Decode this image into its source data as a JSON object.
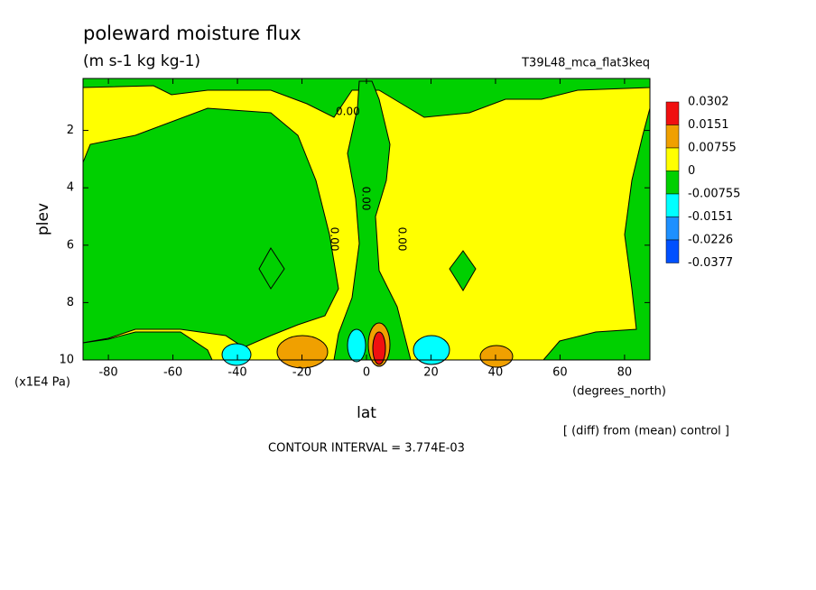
{
  "chart_data": {
    "type": "contour",
    "title": "poleward moisture flux",
    "subtitle": "(m s-1 kg kg-1)",
    "run_label": "T39L48_mca_flat3keq",
    "x_label": "lat",
    "x_units": "(degrees_north)",
    "y_label": "plev",
    "y_units": "(x1E4 Pa)",
    "note": "[ (diff) from (mean) control ]",
    "contour_interval": "CONTOUR INTERVAL = 3.774E-03",
    "contour_labels": [
      "0.00",
      "0.00",
      "0.00",
      "0.00"
    ],
    "xlim": [
      -87.86,
      87.86
    ],
    "xticks": [
      -80,
      -60,
      -40,
      -20,
      0,
      20,
      40,
      60,
      80
    ],
    "ylim": [
      10,
      0.19
    ],
    "yticks": [
      2,
      4,
      6,
      8,
      10
    ],
    "levels": [
      0.0302,
      0.0151,
      0.00755,
      0,
      -0.00755,
      -0.0151,
      -0.0226,
      -0.0377
    ],
    "level_colors": [
      "#f01010",
      "#f0a000",
      "#ffff00",
      "#00d000",
      "#00ffff",
      "#1e90ff",
      "#0050ff"
    ]
  }
}
